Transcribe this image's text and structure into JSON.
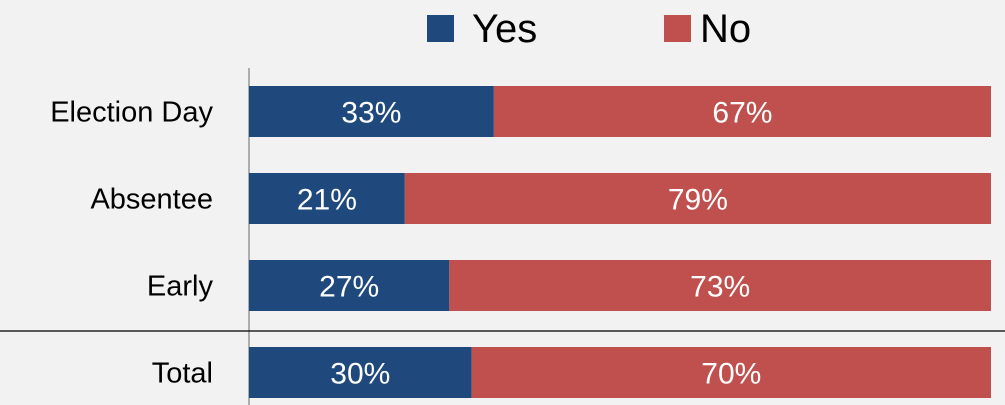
{
  "chart_data": {
    "type": "bar",
    "orientation": "horizontal",
    "stacked": true,
    "percent_stacked": true,
    "categories": [
      "Election Day",
      "Absentee",
      "Early",
      "Total"
    ],
    "series": [
      {
        "name": "Yes",
        "values": [
          33,
          21,
          27,
          30
        ],
        "labels": [
          "33%",
          "21%",
          "27%",
          "30%"
        ],
        "color": "#1f497d"
      },
      {
        "name": "No",
        "values": [
          67,
          79,
          73,
          70
        ],
        "labels": [
          "67%",
          "79%",
          "73%",
          "70%"
        ],
        "color": "#c0504d"
      }
    ],
    "title": "",
    "xlabel": "",
    "ylabel": "",
    "xlim": [
      0,
      100
    ],
    "legend": "top-center",
    "grid": false
  }
}
